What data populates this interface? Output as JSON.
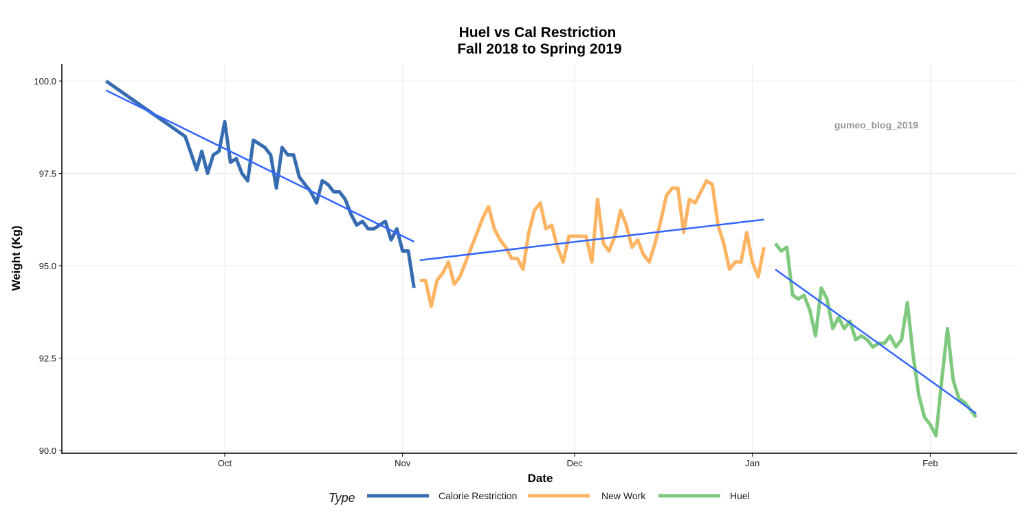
{
  "chart_data": {
    "type": "line",
    "title": "Huel vs Cal Restriction",
    "subtitle": "Fall 2018 to Spring 2019",
    "xlabel": "Date",
    "ylabel": "Weight (Kg)",
    "annotation": "gumeo_blog_2019",
    "x_unit": "days since 2018-10-01",
    "xlim": [
      -27,
      139
    ],
    "ylim": [
      89.9,
      100.5
    ],
    "x_ticks": [
      {
        "label": "Oct",
        "day": 0
      },
      {
        "label": "Nov",
        "day": 31
      },
      {
        "label": "Dec",
        "day": 61
      },
      {
        "label": "Jan",
        "day": 92
      },
      {
        "label": "Feb",
        "day": 123
      }
    ],
    "y_ticks": [
      {
        "label": "90.0",
        "value": 90.0
      },
      {
        "label": "92.5",
        "value": 92.5
      },
      {
        "label": "95.0",
        "value": 95.0
      },
      {
        "label": "97.5",
        "value": 97.5
      },
      {
        "label": "100.0",
        "value": 100.0
      }
    ],
    "grid": true,
    "legend": {
      "title": "Type",
      "position": "bottom"
    },
    "series": [
      {
        "name": "Calorie Restriction",
        "color": "#386cb0",
        "x": [
          -20.7,
          -6.9,
          -6,
          -4.9,
          -4,
          -3,
          -2,
          -1,
          0,
          1,
          2,
          3,
          4,
          5,
          6,
          7,
          8,
          9,
          10,
          11,
          12,
          13,
          14,
          15,
          16,
          17,
          18,
          19,
          20,
          21,
          22,
          23,
          24,
          25,
          26,
          27,
          28,
          29,
          30,
          31,
          32,
          33
        ],
        "y": [
          100.0,
          98.5,
          98.1,
          97.6,
          98.1,
          97.5,
          98.0,
          98.1,
          98.9,
          97.8,
          97.9,
          97.5,
          97.3,
          98.4,
          98.3,
          98.2,
          98.0,
          97.1,
          98.2,
          98.0,
          98.0,
          97.4,
          97.2,
          97.0,
          96.7,
          97.3,
          97.2,
          97.0,
          97.0,
          96.8,
          96.4,
          96.1,
          96.2,
          96.0,
          96.0,
          96.1,
          96.2,
          95.7,
          96.0,
          95.4,
          95.4,
          94.4
        ],
        "trend": {
          "x": [
            -20.7,
            33
          ],
          "y": [
            99.75,
            95.65
          ]
        }
      },
      {
        "name": "New Work",
        "color": "#fdb462",
        "x": [
          34,
          35,
          36,
          37,
          38,
          39,
          40,
          41,
          42,
          43,
          44,
          45,
          46,
          47,
          48,
          49,
          50,
          51,
          52,
          53,
          54,
          55,
          56,
          57,
          58,
          59,
          60,
          61,
          62,
          63,
          64,
          65,
          66,
          67,
          68,
          69,
          70,
          71,
          72,
          73,
          74,
          75,
          76,
          77,
          78,
          79,
          80,
          81,
          82,
          83,
          84,
          85,
          86,
          87,
          88,
          89,
          90,
          91,
          92,
          93,
          94
        ],
        "y": [
          94.6,
          94.6,
          93.9,
          94.6,
          94.8,
          95.1,
          94.5,
          94.7,
          95.1,
          95.5,
          95.9,
          96.3,
          96.6,
          96.0,
          95.7,
          95.5,
          95.2,
          95.2,
          94.9,
          95.9,
          96.5,
          96.7,
          96.0,
          96.1,
          95.5,
          95.1,
          95.8,
          95.8,
          95.8,
          95.8,
          95.1,
          96.8,
          95.6,
          95.4,
          95.8,
          96.5,
          96.1,
          95.5,
          95.7,
          95.3,
          95.1,
          95.6,
          96.2,
          96.9,
          97.1,
          97.1,
          95.9,
          96.8,
          96.7,
          97.0,
          97.3,
          97.2,
          96.1,
          95.6,
          94.9,
          95.1,
          95.1,
          95.9,
          95.1,
          94.7,
          95.5
        ],
        "trend": {
          "x": [
            34,
            94
          ],
          "y": [
            95.15,
            96.25
          ]
        }
      },
      {
        "name": "Huel",
        "color": "#7fc97f",
        "x": [
          96,
          97,
          98,
          99,
          100,
          101,
          102,
          103,
          104,
          105,
          106,
          107,
          108,
          109,
          110,
          111,
          112,
          113,
          114,
          115,
          116,
          117,
          118,
          119,
          120,
          121,
          122,
          123,
          124,
          125,
          126,
          127,
          128,
          129,
          130,
          131
        ],
        "y": [
          95.6,
          95.4,
          95.5,
          94.2,
          94.1,
          94.2,
          93.8,
          93.1,
          94.4,
          94.1,
          93.3,
          93.6,
          93.3,
          93.5,
          93.0,
          93.1,
          93.0,
          92.8,
          92.9,
          92.9,
          93.1,
          92.8,
          93.0,
          94.0,
          92.6,
          91.5,
          90.9,
          90.7,
          90.4,
          91.9,
          93.3,
          91.9,
          91.4,
          91.3,
          91.1,
          90.9
        ],
        "trend": {
          "x": [
            96,
            131
          ],
          "y": [
            94.9,
            91.0
          ]
        }
      }
    ],
    "trend_color": "#3366ff"
  }
}
